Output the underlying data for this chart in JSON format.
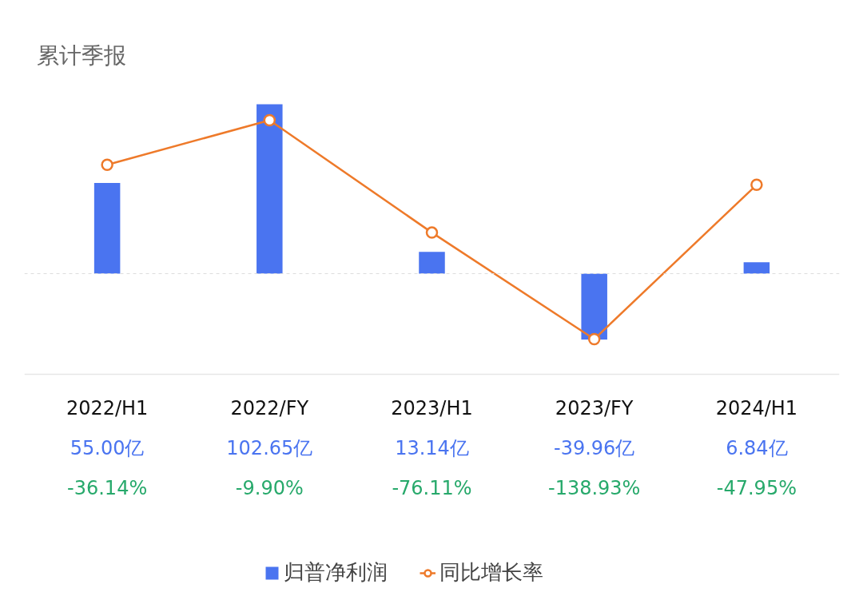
{
  "chart_data": {
    "type": "bar",
    "title": "累计季报",
    "categories": [
      "2022/H1",
      "2022/FY",
      "2023/H1",
      "2023/FY",
      "2024/H1"
    ],
    "series": [
      {
        "name": "归普净利润",
        "color": "#4a74f0",
        "values": [
          55.0,
          102.65,
          13.14,
          -39.96,
          6.84
        ],
        "value_labels": [
          "55.00亿",
          "102.65亿",
          "13.14亿",
          "-39.96亿",
          "6.84亿"
        ]
      },
      {
        "name": "同比增长率",
        "type": "line",
        "axis": "y2",
        "color": "#ee7a2a",
        "values": [
          -36.14,
          -9.9,
          -76.11,
          -138.93,
          -47.95
        ],
        "value_labels": [
          "-36.14%",
          "-9.90%",
          "-76.11%",
          "-138.93%",
          "-47.95%"
        ]
      }
    ],
    "ref_lines": [
      {
        "axis": "y",
        "value": 0,
        "color": "#dddddd",
        "line_style": "dashed"
      }
    ],
    "marker": "circle",
    "line_style": "solid",
    "legend": "bottom",
    "tick_labels": "x",
    "grid": false
  }
}
